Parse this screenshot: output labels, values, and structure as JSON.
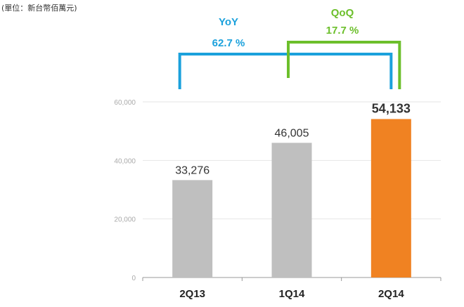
{
  "unit_label": "(單位：新台幣佰萬元)",
  "chart_data": {
    "type": "bar",
    "categories": [
      "2Q13",
      "1Q14",
      "2Q14"
    ],
    "values": [
      33276,
      46005,
      54133
    ],
    "value_labels": [
      "33,276",
      "46,005",
      "54,133"
    ],
    "highlight_index": 2,
    "ylim": [
      0,
      60000
    ],
    "yticks": [
      0,
      20000,
      40000,
      60000
    ],
    "ytick_labels": [
      "0",
      "20,000",
      "40,000",
      "60,000"
    ],
    "grid": true,
    "colors": {
      "default": "#bfbfbf",
      "highlight": "#f08222"
    },
    "annotations": [
      {
        "label": "YoY",
        "value": "62.7 %",
        "from": "2Q13",
        "to": "2Q14",
        "color": "#1ba1dc"
      },
      {
        "label": "QoQ",
        "value": "17.7 %",
        "from": "1Q14",
        "to": "2Q14",
        "color": "#6cbf2b"
      }
    ]
  }
}
